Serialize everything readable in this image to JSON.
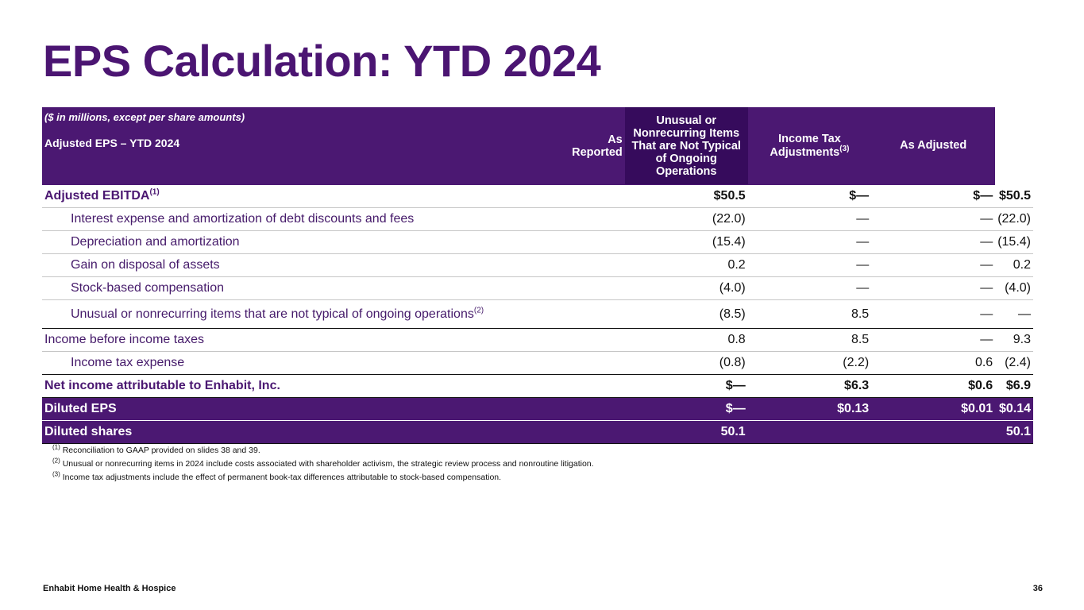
{
  "slide": {
    "title": "EPS Calculation: YTD 2024",
    "footer": "Enhabit Home Health & Hospice",
    "page_number": "36"
  },
  "table": {
    "unit_note": "($ in millions, except per share amounts)",
    "subtitle": "Adjusted EPS – YTD 2024",
    "columns": {
      "as_reported": "As Reported",
      "unusual": "Unusual or Nonrecurring Items That are Not Typical of Ongoing Operations",
      "tax_adj": "Income Tax Adjustments",
      "tax_adj_sup": "(3)",
      "as_adjusted": "As Adjusted"
    },
    "rows": [
      {
        "label": "Adjusted EBITDA",
        "sup": "(1)",
        "as_reported": "$50.5",
        "unusual": "$—",
        "tax_adj": "$—",
        "as_adjusted": "$50.5"
      },
      {
        "label": "Interest expense and amortization of debt discounts and fees",
        "sup": "",
        "as_reported": "(22.0)",
        "unusual": "—",
        "tax_adj": "—",
        "as_adjusted": "(22.0)"
      },
      {
        "label": "Depreciation and amortization",
        "sup": "",
        "as_reported": "(15.4)",
        "unusual": "—",
        "tax_adj": "—",
        "as_adjusted": "(15.4)"
      },
      {
        "label": "Gain on disposal of assets",
        "sup": "",
        "as_reported": "0.2",
        "unusual": "—",
        "tax_adj": "—",
        "as_adjusted": "0.2"
      },
      {
        "label": "Stock-based compensation",
        "sup": "",
        "as_reported": "(4.0)",
        "unusual": "—",
        "tax_adj": "—",
        "as_adjusted": "(4.0)"
      },
      {
        "label": "Unusual or nonrecurring items that are not typical of ongoing operations",
        "sup": "(2)",
        "as_reported": "(8.5)",
        "unusual": "8.5",
        "tax_adj": "—",
        "as_adjusted": "—"
      },
      {
        "label": "Income before income taxes",
        "sup": "",
        "as_reported": "0.8",
        "unusual": "8.5",
        "tax_adj": "—",
        "as_adjusted": "9.3"
      },
      {
        "label": "Income tax expense",
        "sup": "",
        "as_reported": "(0.8)",
        "unusual": "(2.2)",
        "tax_adj": "0.6",
        "as_adjusted": "(2.4)"
      },
      {
        "label": "Net income attributable to Enhabit, Inc.",
        "sup": "",
        "as_reported": "$—",
        "unusual": "$6.3",
        "tax_adj": "$0.6",
        "as_adjusted": "$6.9"
      },
      {
        "label": "Diluted EPS",
        "sup": "",
        "as_reported": "$—",
        "unusual": "$0.13",
        "tax_adj": "$0.01",
        "as_adjusted": "$0.14"
      },
      {
        "label": "Diluted shares",
        "sup": "",
        "as_reported": "50.1",
        "unusual": "",
        "tax_adj": "",
        "as_adjusted": "50.1"
      }
    ]
  },
  "footnotes": [
    {
      "sup": "(1)",
      "text": "Reconciliation to GAAP provided on slides 38 and 39."
    },
    {
      "sup": "(2)",
      "text": "Unusual or nonrecurring items in 2024 include costs associated with shareholder activism, the strategic review process and nonroutine litigation."
    },
    {
      "sup": "(3)",
      "text": "Income tax adjustments include the effect of permanent book-tax differences attributable to stock-based compensation."
    }
  ]
}
